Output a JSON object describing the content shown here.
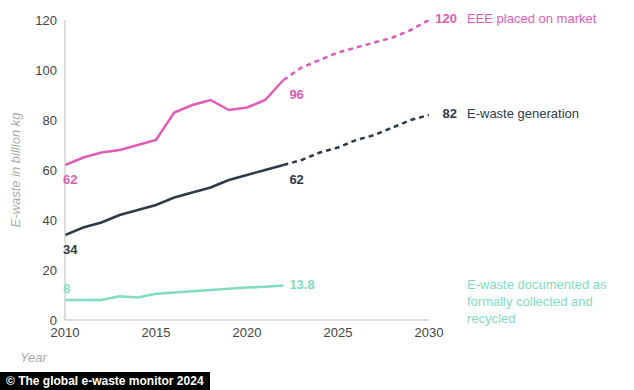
{
  "chart_data": {
    "type": "line",
    "x_label": "Year",
    "y_label": "E-waste in billion kg",
    "source": "© The global e-waste monitor 2024",
    "x": [
      2010,
      2011,
      2012,
      2013,
      2014,
      2015,
      2016,
      2017,
      2018,
      2019,
      2020,
      2021,
      2022,
      2023,
      2024,
      2025,
      2026,
      2027,
      2028,
      2029,
      2030
    ],
    "xlim": [
      2010,
      2030
    ],
    "xticks": [
      2010,
      2015,
      2020,
      2025,
      2030
    ],
    "ylim": [
      0,
      120
    ],
    "yticks": [
      0,
      20,
      40,
      60,
      80,
      100,
      120
    ],
    "grid": false,
    "series": [
      {
        "name": "EEE placed on market",
        "color": "#e05cb7",
        "line_style": "solid",
        "values": [
          62,
          65,
          67,
          68,
          70,
          72,
          83,
          86,
          88,
          84,
          85,
          88,
          96,
          null,
          null,
          null,
          null,
          null,
          null,
          null,
          null
        ],
        "projected_values": [
          null,
          null,
          null,
          null,
          null,
          null,
          null,
          null,
          null,
          null,
          null,
          null,
          96,
          101,
          104,
          107,
          109,
          111,
          113,
          116,
          120
        ],
        "labeled_x": [
          2010,
          2022,
          2030
        ]
      },
      {
        "name": "E-waste generation",
        "color": "#2e3a4b",
        "line_style": "solid",
        "values": [
          34,
          37,
          39,
          42,
          44,
          46,
          49,
          51,
          53,
          56,
          58,
          60,
          62,
          null,
          null,
          null,
          null,
          null,
          null,
          null,
          null
        ],
        "projected_values": [
          null,
          null,
          null,
          null,
          null,
          null,
          null,
          null,
          null,
          null,
          null,
          null,
          62,
          64,
          67,
          69,
          72,
          74,
          77,
          80,
          82
        ],
        "labeled_x": [
          2010,
          2022,
          2030
        ]
      },
      {
        "name": "E-waste documented as formally collected and recycled",
        "color": "#7fdcc0",
        "line_style": "solid",
        "values": [
          8,
          8,
          8,
          9.5,
          9,
          10.5,
          11,
          11.5,
          12,
          12.5,
          13,
          13.3,
          13.8,
          null,
          null,
          null,
          null,
          null,
          null,
          null,
          null
        ],
        "labeled_x": [
          2010,
          2022
        ]
      }
    ]
  }
}
